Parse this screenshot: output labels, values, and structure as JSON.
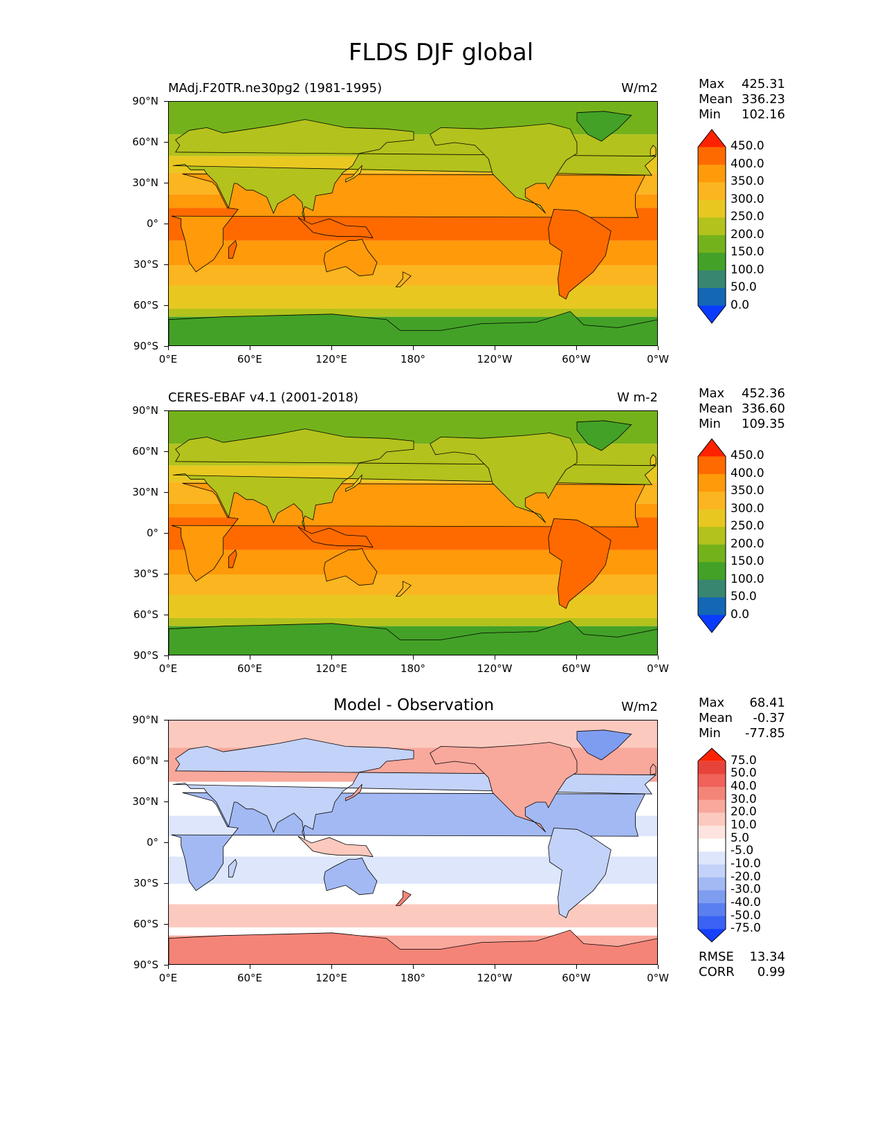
{
  "figure_title": "FLDS DJF global",
  "panels": [
    {
      "title": "MAdj.F20TR.ne30pg2 (1981-1995)",
      "units": "W/m2",
      "stats": [
        {
          "label": "Max",
          "value": "425.31"
        },
        {
          "label": "Mean",
          "value": "336.23"
        },
        {
          "label": "Min",
          "value": "102.16"
        }
      ]
    },
    {
      "title": "CERES-EBAF v4.1 (2001-2018)",
      "units": "W m-2",
      "stats": [
        {
          "label": "Max",
          "value": "452.36"
        },
        {
          "label": "Mean",
          "value": "336.60"
        },
        {
          "label": "Min",
          "value": "109.35"
        }
      ]
    },
    {
      "title": "Model - Observation",
      "units": "W/m2",
      "stats": [
        {
          "label": "Max",
          "value": "68.41"
        },
        {
          "label": "Mean",
          "value": "-0.37"
        },
        {
          "label": "Min",
          "value": "-77.85"
        }
      ],
      "extra_stats": [
        {
          "label": "RMSE",
          "value": "13.34"
        },
        {
          "label": "CORR",
          "value": "0.99"
        }
      ]
    }
  ],
  "lat_ticks": [
    "90°N",
    "60°N",
    "30°N",
    "0°",
    "30°S",
    "60°S",
    "90°S"
  ],
  "lon_ticks": [
    "0°E",
    "60°E",
    "120°E",
    "180°",
    "120°W",
    "60°W",
    "0°W"
  ],
  "field_colorbar": {
    "labels": [
      "450.0",
      "400.0",
      "350.0",
      "300.0",
      "250.0",
      "200.0",
      "150.0",
      "100.0",
      "50.0",
      "0.0"
    ],
    "colors": [
      "#ff2200",
      "#ff6a00",
      "#ff9a0a",
      "#fbb520",
      "#e8c820",
      "#b3c21c",
      "#74b21c",
      "#43a127",
      "#388670",
      "#1367b4",
      "#0a3cff"
    ]
  },
  "diff_colorbar": {
    "labels": [
      "75.0",
      "50.0",
      "40.0",
      "30.0",
      "20.0",
      "10.0",
      "5.0",
      "-5.0",
      "-10.0",
      "-20.0",
      "-30.0",
      "-40.0",
      "-50.0",
      "-75.0"
    ],
    "colors": [
      "#ff2200",
      "#e8433a",
      "#f0625a",
      "#f58478",
      "#f9a89c",
      "#fcc9bf",
      "#fde4df",
      "#ffffff",
      "#dde6fb",
      "#c3d2f8",
      "#a3b9f3",
      "#7f9df0",
      "#5a7ff0",
      "#3a62f5",
      "#1540ff"
    ]
  }
}
